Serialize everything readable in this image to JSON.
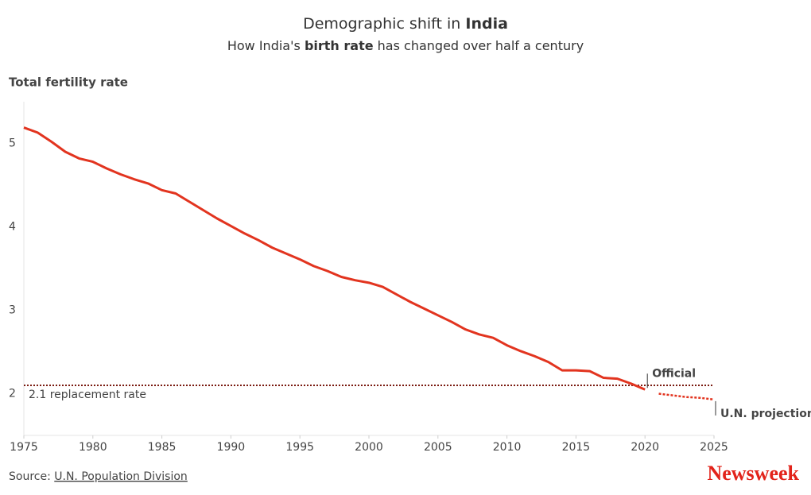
{
  "chart_data": {
    "type": "line",
    "title": [
      "Demographic shift in",
      "India"
    ],
    "subtitle": [
      "How India's",
      "birth rate",
      "has changed over half a century"
    ],
    "y_label": "Total fertility rate",
    "x": [
      1975,
      1976,
      1977,
      1978,
      1979,
      1980,
      1981,
      1982,
      1983,
      1984,
      1985,
      1986,
      1987,
      1988,
      1989,
      1990,
      1991,
      1992,
      1993,
      1994,
      1995,
      1996,
      1997,
      1998,
      1999,
      2000,
      2001,
      2002,
      2003,
      2004,
      2005,
      2006,
      2007,
      2008,
      2009,
      2010,
      2011,
      2012,
      2013,
      2014,
      2015,
      2016,
      2017,
      2018,
      2019,
      2020,
      2021,
      2022,
      2023,
      2024,
      2025
    ],
    "series": [
      {
        "name": "Official",
        "color": "#e2341f",
        "style": "solid",
        "values": [
          5.19,
          5.13,
          5.02,
          4.9,
          4.82,
          4.78,
          4.7,
          4.63,
          4.57,
          4.52,
          4.44,
          4.4,
          4.3,
          4.2,
          4.1,
          4.01,
          3.92,
          3.84,
          3.75,
          3.68,
          3.61,
          3.53,
          3.47,
          3.4,
          3.36,
          3.33,
          3.28,
          3.19,
          3.1,
          3.02,
          2.94,
          2.86,
          2.77,
          2.71,
          2.67,
          2.58,
          2.51,
          2.45,
          2.38,
          2.28,
          2.28,
          2.27,
          2.19,
          2.18,
          2.12,
          2.05,
          null,
          null,
          null,
          null,
          null
        ]
      },
      {
        "name": "U.N. projection",
        "color": "#e2341f",
        "style": "dotted",
        "values": [
          null,
          null,
          null,
          null,
          null,
          null,
          null,
          null,
          null,
          null,
          null,
          null,
          null,
          null,
          null,
          null,
          null,
          null,
          null,
          null,
          null,
          null,
          null,
          null,
          null,
          null,
          null,
          null,
          null,
          null,
          null,
          null,
          null,
          null,
          null,
          null,
          null,
          null,
          null,
          null,
          null,
          null,
          null,
          null,
          null,
          null,
          2.0,
          1.98,
          1.96,
          1.95,
          1.93
        ]
      }
    ],
    "reference_line": {
      "value": 2.1,
      "label": "2.1 replacement rate",
      "color": "#7a1a10"
    },
    "xlim": [
      1975,
      2025
    ],
    "xticks": [
      1975,
      1980,
      1985,
      1990,
      1995,
      2000,
      2005,
      2010,
      2015,
      2020,
      2025
    ],
    "ylim": [
      1.5,
      5.5
    ],
    "yticks": [
      2,
      3,
      4,
      5
    ],
    "grid": false,
    "source_label": "Source:",
    "source": "U.N. Population Division",
    "brand": "Newsweek"
  }
}
